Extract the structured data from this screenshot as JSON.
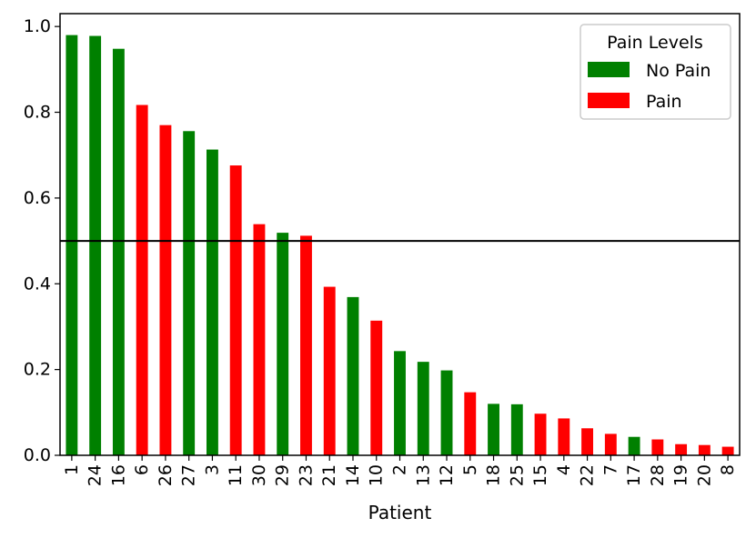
{
  "chart_data": {
    "type": "bar",
    "title": "",
    "xlabel": "Patient",
    "ylabel": "",
    "ylim": [
      0,
      1.03
    ],
    "yticks": [
      "0.0",
      "0.2",
      "0.4",
      "0.6",
      "0.8",
      "1.0"
    ],
    "ytick_values": [
      0.0,
      0.2,
      0.4,
      0.6,
      0.8,
      1.0
    ],
    "threshold": 0.5,
    "categories": [
      "1",
      "24",
      "16",
      "6",
      "26",
      "27",
      "3",
      "11",
      "30",
      "29",
      "23",
      "21",
      "14",
      "10",
      "2",
      "13",
      "12",
      "5",
      "18",
      "25",
      "15",
      "4",
      "22",
      "7",
      "17",
      "28",
      "19",
      "20",
      "8"
    ],
    "values": [
      0.98,
      0.978,
      0.948,
      0.817,
      0.77,
      0.756,
      0.713,
      0.676,
      0.539,
      0.519,
      0.512,
      0.393,
      0.369,
      0.314,
      0.243,
      0.218,
      0.198,
      0.147,
      0.12,
      0.119,
      0.097,
      0.086,
      0.063,
      0.05,
      0.043,
      0.037,
      0.026,
      0.024,
      0.02
    ],
    "groups": [
      "No Pain",
      "No Pain",
      "No Pain",
      "Pain",
      "Pain",
      "No Pain",
      "No Pain",
      "Pain",
      "Pain",
      "No Pain",
      "Pain",
      "Pain",
      "No Pain",
      "Pain",
      "No Pain",
      "No Pain",
      "No Pain",
      "Pain",
      "No Pain",
      "No Pain",
      "Pain",
      "Pain",
      "Pain",
      "Pain",
      "No Pain",
      "Pain",
      "Pain",
      "Pain",
      "Pain"
    ],
    "legend": {
      "title": "Pain Levels",
      "placement": "top-right",
      "entries": [
        {
          "name": "No Pain",
          "color": "#008000"
        },
        {
          "name": "Pain",
          "color": "#ff0000"
        }
      ]
    },
    "grid": false
  }
}
